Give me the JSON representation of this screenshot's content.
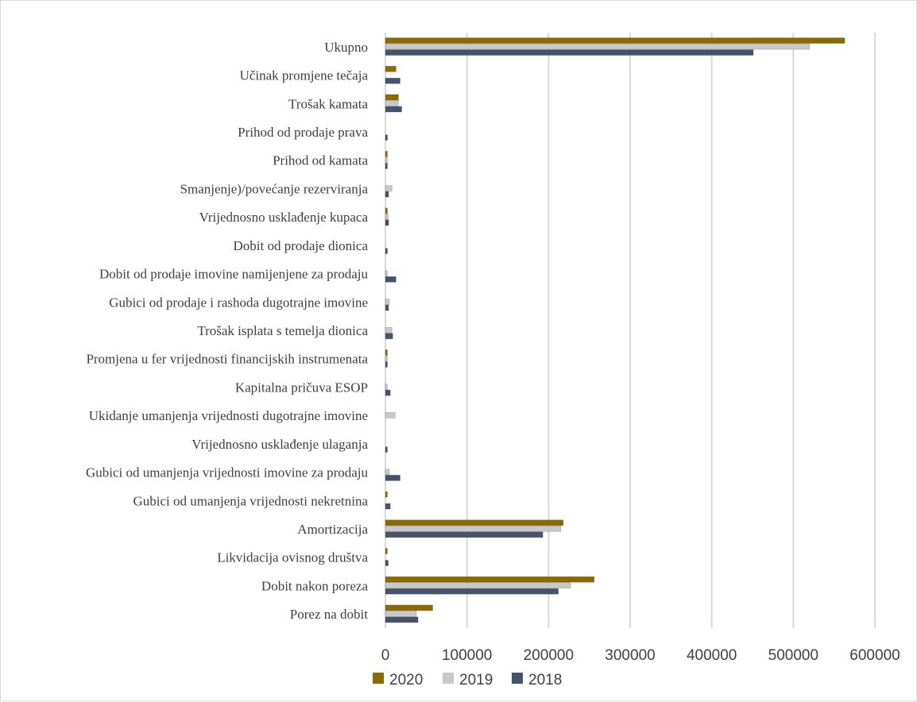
{
  "chart_data": {
    "type": "bar",
    "orientation": "horizontal",
    "categories": [
      "Ukupno",
      "Učinak promjene tečaja",
      "Trošak kamata",
      "Prihod od prodaje prava",
      "Prihod od kamata",
      "Smanjenje)/povećanje rezerviranja",
      "Vrijednosno usklađenje kupaca",
      "Dobit od prodaje dionica",
      "Dobit od prodaje imovine namijenjene za prodaju",
      "Gubici od prodaje i rashoda dugotrajne imovine",
      "Trošak isplata s temelja dionica",
      "Promjena u fer vrijednosti financijskih instrumenata",
      "Kapitalna pričuva ESOP",
      "Ukidanje umanjenja vrijednosti dugotrajne imovine",
      "Vrijednosno usklađenje ulaganja",
      "Gubici od umanjenja vrijednosti imovine za prodaju",
      "Gubici od umanjenja vrijednosti nekretnina",
      "Amortizacija",
      "Likvidacija ovisnog društva",
      "Dobit nakon poreza",
      "Porez na dobit"
    ],
    "series": [
      {
        "name": "2020",
        "color": "#8B6B00",
        "values": [
          563000,
          13000,
          16000,
          0,
          1500,
          0,
          1500,
          0,
          0,
          0,
          0,
          1500,
          0,
          0,
          0,
          0,
          1500,
          218000,
          1500,
          256000,
          58000
        ]
      },
      {
        "name": "2019",
        "color": "#C9C9C9",
        "values": [
          520000,
          0,
          16000,
          0,
          2000,
          8000,
          3500,
          0,
          2500,
          5000,
          8000,
          1000,
          2000,
          12000,
          0,
          5000,
          0,
          215000,
          0,
          227000,
          38000
        ]
      },
      {
        "name": "2018",
        "color": "#44546A",
        "values": [
          451000,
          18000,
          20000,
          2500,
          2000,
          4000,
          4000,
          1500,
          13000,
          4000,
          9000,
          2000,
          6000,
          0,
          2000,
          18000,
          6000,
          193000,
          3500,
          212000,
          40000
        ]
      }
    ],
    "legend_order": [
      "2020",
      "2019",
      "2018"
    ],
    "xlim": [
      0,
      600000
    ],
    "xticks": [
      "0",
      "100000",
      "200000",
      "300000",
      "400000",
      "500000",
      "600000"
    ],
    "grid": true,
    "legend_position": "bottom",
    "title": "",
    "xlabel": "",
    "ylabel": ""
  }
}
